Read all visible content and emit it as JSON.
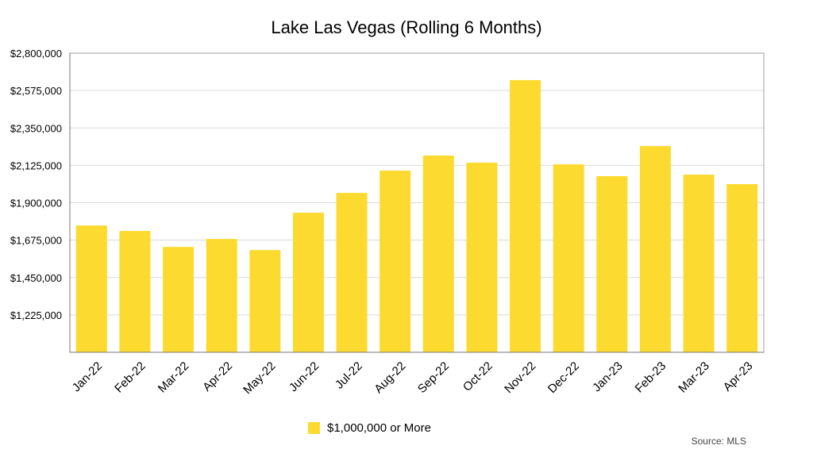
{
  "chart_data": {
    "type": "bar",
    "title": "Lake Las Vegas (Rolling 6 Months)",
    "xlabel": "",
    "ylabel": "",
    "categories": [
      "Jan-22",
      "Feb-22",
      "Mar-22",
      "Apr-22",
      "May-22",
      "Jun-22",
      "Jul-22",
      "Aug-22",
      "Sep-22",
      "Oct-22",
      "Nov-22",
      "Dec-22",
      "Jan-23",
      "Feb-23",
      "Mar-23",
      "Apr-23"
    ],
    "series": [
      {
        "name": "$1,000,000 or More",
        "color": "#FDDA2F",
        "values": [
          1763000,
          1730000,
          1634000,
          1682000,
          1615000,
          1840000,
          1959000,
          2093000,
          2184000,
          2141000,
          2638000,
          2131000,
          2060000,
          2241000,
          2069000,
          2012000
        ]
      }
    ],
    "ylim": [
      1000000,
      2800000
    ],
    "yticks": [
      1225000,
      1450000,
      1675000,
      1900000,
      2125000,
      2350000,
      2575000,
      2800000
    ],
    "ytick_labels": [
      "$1,225,000",
      "$1,450,000",
      "$1,675,000",
      "$1,900,000",
      "$2,125,000",
      "$2,350,000",
      "$2,575,000",
      "$2,800,000"
    ],
    "grid": true,
    "legend_position": "bottom-center",
    "source": "Source: MLS"
  }
}
